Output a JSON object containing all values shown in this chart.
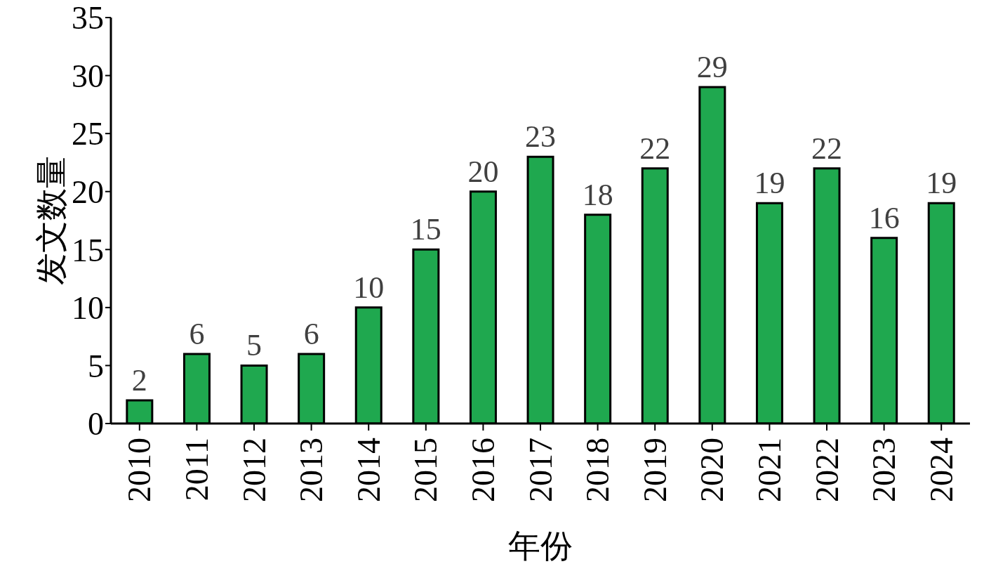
{
  "chart_data": {
    "type": "bar",
    "xlabel": "年份",
    "ylabel": "发文数量",
    "categories": [
      "2010",
      "2011",
      "2012",
      "2013",
      "2014",
      "2015",
      "2016",
      "2017",
      "2018",
      "2019",
      "2020",
      "2021",
      "2022",
      "2023",
      "2024"
    ],
    "values": [
      2,
      6,
      5,
      6,
      10,
      15,
      20,
      23,
      18,
      22,
      29,
      19,
      22,
      16,
      19
    ],
    "color": "#1fa84f",
    "ylim": [
      0,
      35
    ],
    "yticks": [
      0,
      5,
      10,
      15,
      20,
      25,
      30,
      35
    ],
    "data_labels": true
  }
}
